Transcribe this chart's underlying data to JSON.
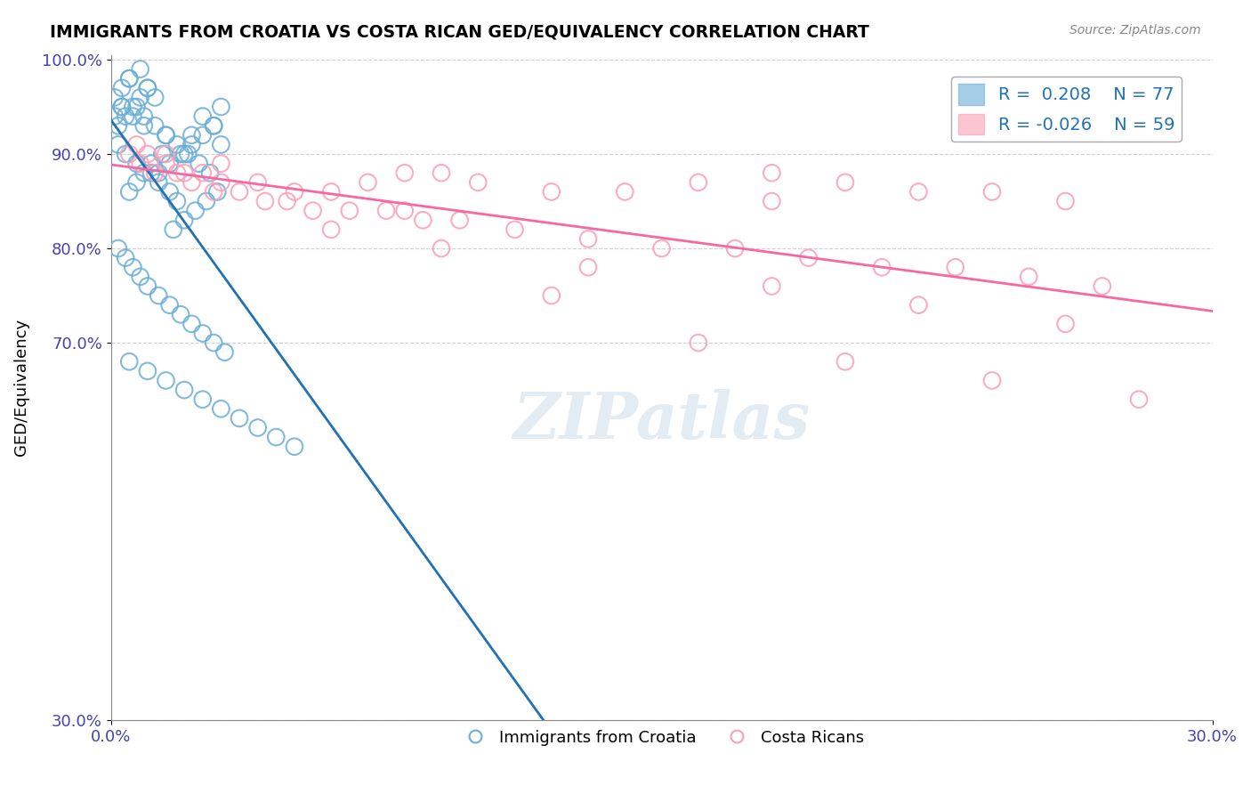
{
  "title": "IMMIGRANTS FROM CROATIA VS COSTA RICAN GED/EQUIVALENCY CORRELATION CHART",
  "source_text": "Source: ZipAtlas.com",
  "xlabel": "",
  "ylabel": "GED/Equivalency",
  "xmin": 0.0,
  "xmax": 0.3,
  "ymin": 0.3,
  "ymax": 1.005,
  "xtick_labels": [
    "0.0%",
    "30.0%"
  ],
  "ytick_labels": [
    "100.0%",
    "90.0%",
    "80.0%",
    "70.0%",
    "30.0%"
  ],
  "ytick_positions": [
    1.0,
    0.9,
    0.8,
    0.7,
    0.3
  ],
  "blue_color": "#6baed6",
  "pink_color": "#fa9fb5",
  "blue_line_color": "#2171b5",
  "pink_line_color": "#f768a1",
  "legend_R_blue": "R =  0.208",
  "legend_N_blue": "N = 77",
  "legend_R_pink": "R = -0.026",
  "legend_N_pink": "N = 59",
  "blue_scatter_x": [
    0.01,
    0.005,
    0.008,
    0.012,
    0.003,
    0.006,
    0.009,
    0.015,
    0.002,
    0.004,
    0.007,
    0.011,
    0.013,
    0.016,
    0.018,
    0.02,
    0.022,
    0.025,
    0.028,
    0.03,
    0.001,
    0.003,
    0.005,
    0.007,
    0.009,
    0.012,
    0.015,
    0.018,
    0.021,
    0.024,
    0.027,
    0.03,
    0.002,
    0.004,
    0.006,
    0.008,
    0.01,
    0.013,
    0.016,
    0.019,
    0.022,
    0.025,
    0.028,
    0.001,
    0.003,
    0.005,
    0.007,
    0.009,
    0.011,
    0.014,
    0.017,
    0.02,
    0.023,
    0.026,
    0.029,
    0.002,
    0.004,
    0.006,
    0.008,
    0.01,
    0.013,
    0.016,
    0.019,
    0.022,
    0.025,
    0.028,
    0.031,
    0.005,
    0.01,
    0.015,
    0.02,
    0.025,
    0.03,
    0.035,
    0.04,
    0.045,
    0.05
  ],
  "blue_scatter_y": [
    0.97,
    0.98,
    0.99,
    0.96,
    0.95,
    0.94,
    0.93,
    0.92,
    0.91,
    0.9,
    0.89,
    0.88,
    0.87,
    0.86,
    0.85,
    0.9,
    0.92,
    0.94,
    0.93,
    0.95,
    0.96,
    0.97,
    0.98,
    0.95,
    0.94,
    0.93,
    0.92,
    0.91,
    0.9,
    0.89,
    0.88,
    0.91,
    0.93,
    0.94,
    0.95,
    0.96,
    0.97,
    0.88,
    0.89,
    0.9,
    0.91,
    0.92,
    0.93,
    0.94,
    0.95,
    0.86,
    0.87,
    0.88,
    0.89,
    0.9,
    0.82,
    0.83,
    0.84,
    0.85,
    0.86,
    0.8,
    0.79,
    0.78,
    0.77,
    0.76,
    0.75,
    0.74,
    0.73,
    0.72,
    0.71,
    0.7,
    0.69,
    0.68,
    0.67,
    0.66,
    0.65,
    0.64,
    0.63,
    0.62,
    0.61,
    0.6,
    0.59
  ],
  "pink_scatter_x": [
    0.01,
    0.015,
    0.02,
    0.025,
    0.03,
    0.04,
    0.05,
    0.06,
    0.07,
    0.08,
    0.09,
    0.1,
    0.12,
    0.14,
    0.16,
    0.18,
    0.2,
    0.22,
    0.24,
    0.26,
    0.005,
    0.008,
    0.012,
    0.018,
    0.022,
    0.028,
    0.035,
    0.042,
    0.048,
    0.055,
    0.065,
    0.075,
    0.085,
    0.095,
    0.11,
    0.13,
    0.15,
    0.17,
    0.19,
    0.21,
    0.23,
    0.25,
    0.27,
    0.007,
    0.015,
    0.03,
    0.06,
    0.09,
    0.13,
    0.18,
    0.22,
    0.26,
    0.16,
    0.2,
    0.24,
    0.28,
    0.12,
    0.08,
    0.18
  ],
  "pink_scatter_y": [
    0.9,
    0.89,
    0.88,
    0.88,
    0.87,
    0.87,
    0.86,
    0.86,
    0.87,
    0.88,
    0.88,
    0.87,
    0.86,
    0.86,
    0.87,
    0.88,
    0.87,
    0.86,
    0.86,
    0.85,
    0.9,
    0.89,
    0.88,
    0.88,
    0.87,
    0.86,
    0.86,
    0.85,
    0.85,
    0.84,
    0.84,
    0.84,
    0.83,
    0.83,
    0.82,
    0.81,
    0.8,
    0.8,
    0.79,
    0.78,
    0.78,
    0.77,
    0.76,
    0.91,
    0.9,
    0.89,
    0.82,
    0.8,
    0.78,
    0.76,
    0.74,
    0.72,
    0.7,
    0.68,
    0.66,
    0.64,
    0.75,
    0.84,
    0.85
  ],
  "grid_color": "#d0d0d0",
  "watermark_text": "ZIPatlas",
  "watermark_color": "#c8d8e8"
}
